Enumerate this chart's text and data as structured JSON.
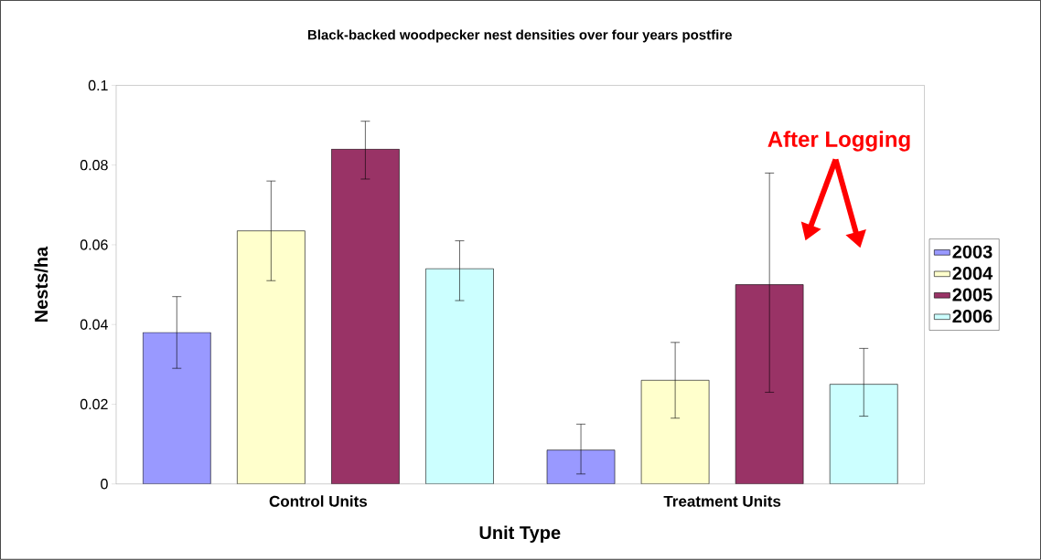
{
  "chart_data": {
    "type": "bar",
    "title": "Black-backed woodpecker nest densities over four years postfire",
    "xlabel": "Unit Type",
    "ylabel": "Nests/ha",
    "categories": [
      "Control Units",
      "Treatment Units"
    ],
    "series": [
      {
        "name": "2003",
        "color": "#9999ff",
        "values": [
          0.038,
          0.0085
        ],
        "errors": [
          [
            0.029,
            0.047
          ],
          [
            0.0025,
            0.015
          ]
        ]
      },
      {
        "name": "2004",
        "color": "#ffffcc",
        "values": [
          0.0635,
          0.026
        ],
        "errors": [
          [
            0.051,
            0.076
          ],
          [
            0.0165,
            0.0355
          ]
        ]
      },
      {
        "name": "2005",
        "color": "#993366",
        "values": [
          0.084,
          0.05
        ],
        "errors": [
          [
            0.0765,
            0.091
          ],
          [
            0.023,
            0.078
          ]
        ]
      },
      {
        "name": "2006",
        "color": "#ccffff",
        "values": [
          0.054,
          0.025
        ],
        "errors": [
          [
            0.046,
            0.061
          ],
          [
            0.017,
            0.034
          ]
        ]
      }
    ],
    "ylim": [
      0,
      0.1
    ],
    "yticks": [
      0,
      0.02,
      0.04,
      0.06,
      0.08,
      0.1
    ],
    "grid": false,
    "legend": "right",
    "annotations": [
      "After Logging"
    ]
  }
}
